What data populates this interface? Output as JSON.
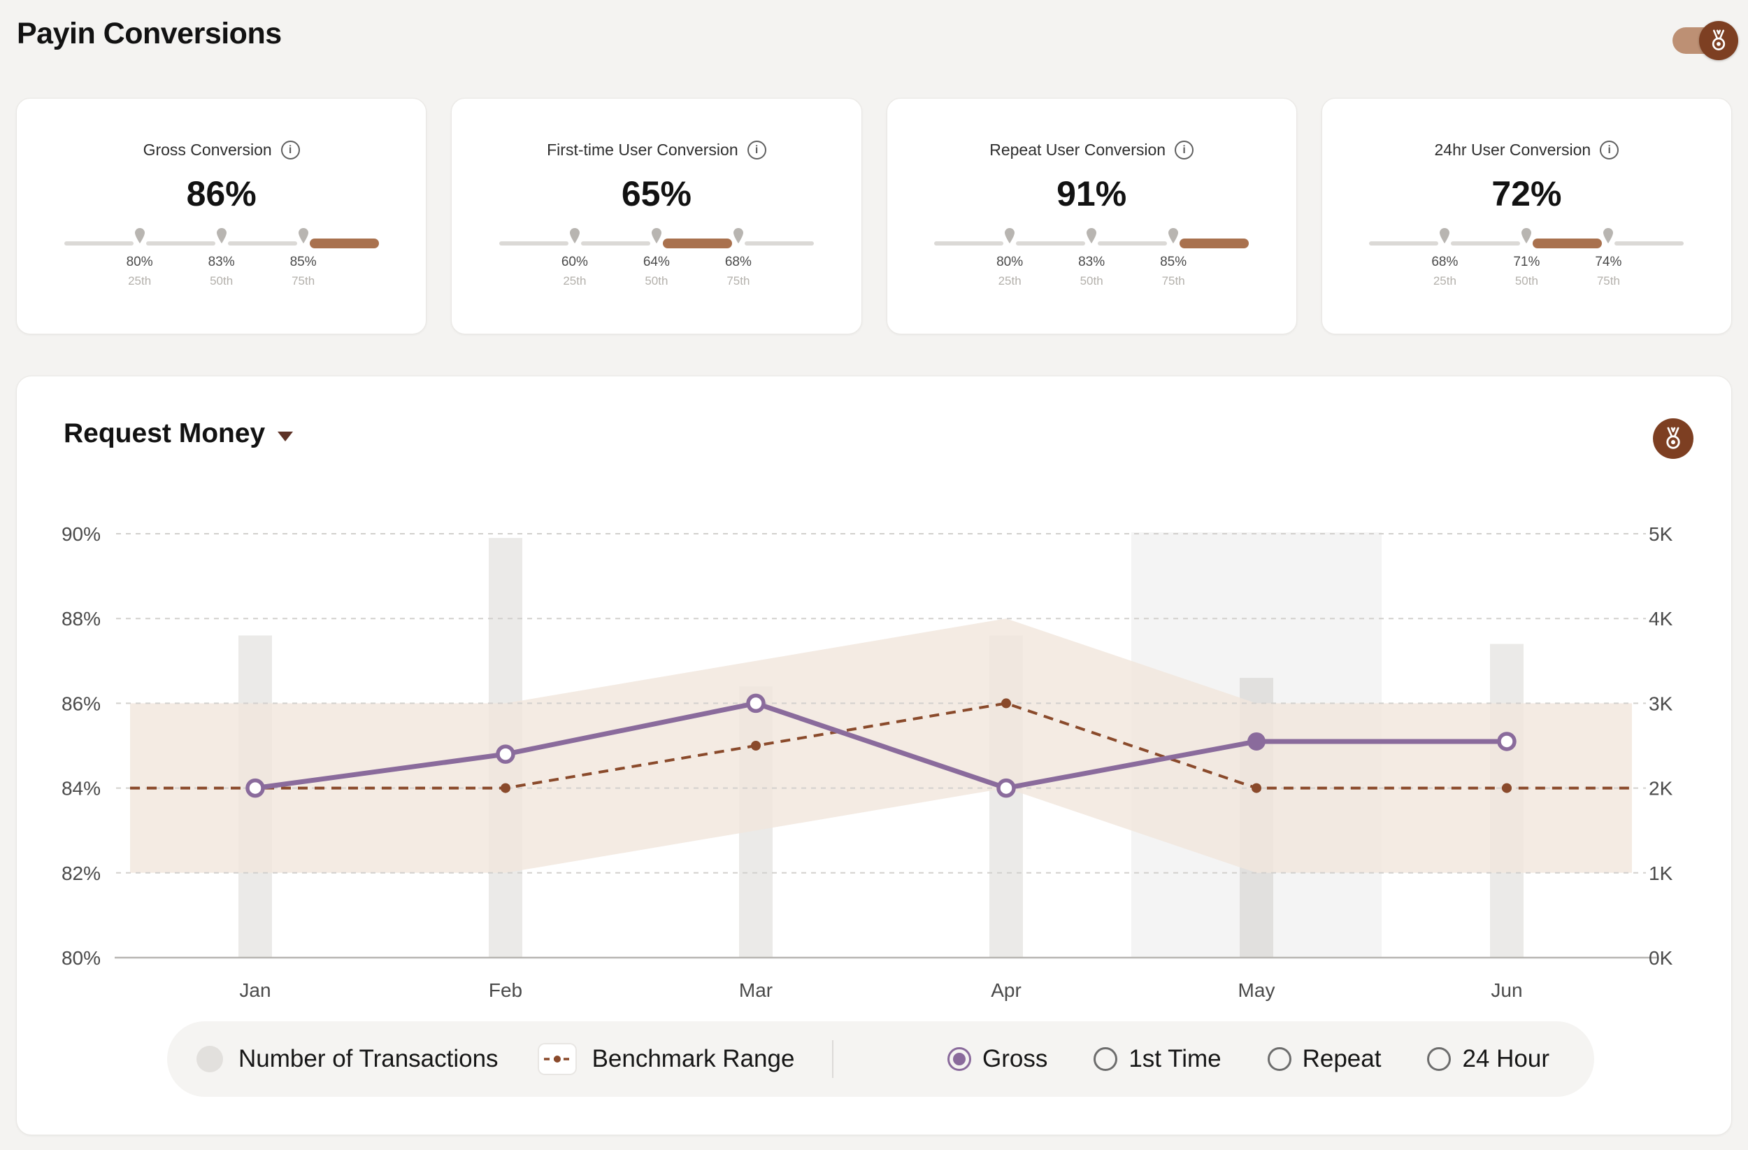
{
  "page": {
    "title": "Payin Conversions"
  },
  "header": {
    "medal_toggle": {
      "on": true
    }
  },
  "colors": {
    "accent_brown": "#a9714e",
    "dark_brown": "#7d3f22",
    "purple": "#8a6b9c",
    "benchmark_brown": "#8a4a2b",
    "band_beige": "#f1e6dc"
  },
  "cards": [
    {
      "title": "Gross Conversion",
      "value": "86%",
      "active_segment": 3,
      "percentiles": [
        {
          "value": "80%",
          "label": "25th"
        },
        {
          "value": "83%",
          "label": "50th"
        },
        {
          "value": "85%",
          "label": "75th"
        }
      ]
    },
    {
      "title": "First-time User Conversion",
      "value": "65%",
      "active_segment": 2,
      "percentiles": [
        {
          "value": "60%",
          "label": "25th"
        },
        {
          "value": "64%",
          "label": "50th"
        },
        {
          "value": "68%",
          "label": "75th"
        }
      ]
    },
    {
      "title": "Repeat User Conversion",
      "value": "91%",
      "active_segment": 3,
      "percentiles": [
        {
          "value": "80%",
          "label": "25th"
        },
        {
          "value": "83%",
          "label": "50th"
        },
        {
          "value": "85%",
          "label": "75th"
        }
      ]
    },
    {
      "title": "24hr User Conversion",
      "value": "72%",
      "active_segment": 2,
      "percentiles": [
        {
          "value": "68%",
          "label": "25th"
        },
        {
          "value": "71%",
          "label": "50th"
        },
        {
          "value": "74%",
          "label": "75th"
        }
      ]
    }
  ],
  "chart_card": {
    "title_dropdown": {
      "label": "Request Money"
    },
    "legend": {
      "transactions": {
        "label": "Number of Transactions"
      },
      "benchmark": {
        "label": "Benchmark Range"
      },
      "radios": [
        {
          "label": "Gross",
          "selected": true
        },
        {
          "label": "1st Time",
          "selected": false
        },
        {
          "label": "Repeat",
          "selected": false
        },
        {
          "label": "24 Hour",
          "selected": false
        }
      ]
    }
  },
  "chart_data": {
    "type": "line",
    "title": "Request Money",
    "x": [
      "Jan",
      "Feb",
      "Mar",
      "Apr",
      "May",
      "Jun"
    ],
    "left_axis": {
      "min": 80,
      "max": 90,
      "ticks": [
        "80%",
        "82%",
        "84%",
        "86%",
        "88%",
        "90%"
      ]
    },
    "right_axis": {
      "min": 0,
      "max": 5,
      "ticks": [
        "0K",
        "1K",
        "2K",
        "3K",
        "4K",
        "5K"
      ]
    },
    "grid": "dashed-horizontal",
    "hover_month_index": 4,
    "series": [
      {
        "name": "Gross Conversion",
        "type": "line",
        "axis": "left",
        "color": "#8a6b9c",
        "values": [
          84,
          84.8,
          86,
          84,
          85.1,
          85.1
        ],
        "highlight_index": 4
      },
      {
        "name": "Benchmark",
        "type": "dashed-line",
        "axis": "left",
        "color": "#8a4a2b",
        "values": [
          84,
          84,
          85,
          86,
          84,
          84
        ]
      },
      {
        "name": "Benchmark Range",
        "type": "band",
        "axis": "left",
        "color": "#f1e6dc",
        "upper": [
          86,
          86,
          87,
          88,
          86,
          86
        ],
        "lower": [
          82,
          82,
          83,
          84,
          82,
          82
        ]
      },
      {
        "name": "Number of Transactions",
        "type": "bar",
        "axis": "right",
        "color": "#ebeae8",
        "values": [
          3.8,
          4.95,
          3.2,
          3.8,
          3.3,
          3.7
        ]
      }
    ]
  }
}
